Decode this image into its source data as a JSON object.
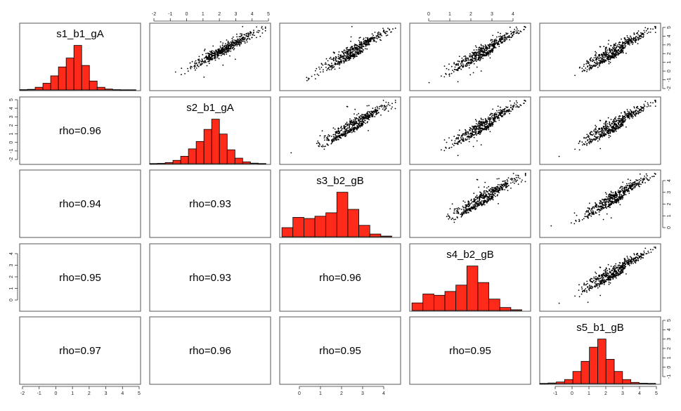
{
  "colors": {
    "bar_fill": "#ff2a1a",
    "bar_stroke": "#000000",
    "point": "#000000",
    "frame": "#555555"
  },
  "chart_data": {
    "type": "scatter",
    "layout": "pairs-matrix",
    "variables": [
      "s1_b1_gA",
      "s2_b1_gA",
      "s3_b2_gB",
      "s4_b2_gB",
      "s5_b1_gB"
    ],
    "diagonal": {
      "type": "bar",
      "histograms": [
        {
          "variable": "s1_b1_gA",
          "bins": [
            -2.5,
            -2,
            -1.5,
            -1,
            -0.5,
            0,
            0.5,
            1,
            1.5,
            2,
            2.5,
            3,
            3.5,
            4,
            4.5,
            5
          ],
          "counts": [
            2,
            4,
            18,
            45,
            95,
            155,
            215,
            300,
            165,
            60,
            18,
            6,
            2,
            1,
            1
          ],
          "range": [
            -2.5,
            5.3
          ],
          "ticks": [
            -2,
            -1,
            0,
            1,
            2,
            3,
            4,
            5
          ]
        },
        {
          "variable": "s2_b1_gA",
          "bins": [
            -2.5,
            -2,
            -1.5,
            -1,
            -0.5,
            0,
            0.5,
            1,
            1.5,
            2,
            2.5,
            3,
            3.5,
            4,
            4.5,
            5
          ],
          "counts": [
            1,
            2,
            6,
            18,
            40,
            80,
            120,
            185,
            240,
            160,
            75,
            30,
            10,
            3,
            1
          ],
          "range": [
            -2.5,
            5.3
          ],
          "ticks": [
            -2,
            -1,
            0,
            1,
            2,
            3,
            4,
            5
          ]
        },
        {
          "variable": "s3_b2_gB",
          "bins": [
            -0.5,
            0,
            0.5,
            1,
            1.5,
            2,
            2.5,
            3,
            3.5,
            4,
            4.5
          ],
          "counts": [
            40,
            85,
            80,
            90,
            105,
            195,
            120,
            50,
            12,
            3
          ],
          "range": [
            -0.6,
            4.9
          ],
          "ticks": [
            0,
            1,
            2,
            3,
            4
          ]
        },
        {
          "variable": "s4_b2_gB",
          "bins": [
            -0.5,
            0,
            0.5,
            1,
            1.5,
            2,
            2.5,
            3,
            3.5,
            4,
            4.5
          ],
          "counts": [
            30,
            65,
            60,
            75,
            100,
            175,
            110,
            45,
            12,
            3
          ],
          "range": [
            -0.6,
            4.9
          ],
          "ticks": [
            0,
            1,
            2,
            3,
            4
          ]
        },
        {
          "variable": "s5_b1_gB",
          "bins": [
            -2,
            -1.5,
            -1,
            -0.5,
            0,
            0.5,
            1,
            1.5,
            2,
            2.5,
            3,
            3.5,
            4,
            4.5,
            5
          ],
          "counts": [
            1,
            3,
            8,
            20,
            60,
            110,
            180,
            220,
            120,
            60,
            20,
            6,
            2,
            1
          ],
          "range": [
            -2,
            5.3
          ],
          "ticks": [
            -1,
            0,
            1,
            2,
            3,
            4,
            5
          ]
        }
      ]
    },
    "lower": [
      {
        "row": 2,
        "col": 1,
        "label": "rho=0.96",
        "rho": 0.96
      },
      {
        "row": 3,
        "col": 1,
        "label": "rho=0.94",
        "rho": 0.94
      },
      {
        "row": 3,
        "col": 2,
        "label": "rho=0.93",
        "rho": 0.93
      },
      {
        "row": 4,
        "col": 1,
        "label": "rho=0.95",
        "rho": 0.95
      },
      {
        "row": 4,
        "col": 2,
        "label": "rho=0.93",
        "rho": 0.93
      },
      {
        "row": 4,
        "col": 3,
        "label": "rho=0.96",
        "rho": 0.96
      },
      {
        "row": 5,
        "col": 1,
        "label": "rho=0.97",
        "rho": 0.97
      },
      {
        "row": 5,
        "col": 2,
        "label": "rho=0.96",
        "rho": 0.96
      },
      {
        "row": 5,
        "col": 3,
        "label": "rho=0.95",
        "rho": 0.95
      },
      {
        "row": 5,
        "col": 4,
        "label": "rho=0.95",
        "rho": 0.95
      }
    ],
    "upper_scatter": [
      {
        "row": 1,
        "col": 2
      },
      {
        "row": 1,
        "col": 3
      },
      {
        "row": 1,
        "col": 4
      },
      {
        "row": 1,
        "col": 5
      },
      {
        "row": 2,
        "col": 3
      },
      {
        "row": 2,
        "col": 4
      },
      {
        "row": 2,
        "col": 5
      },
      {
        "row": 3,
        "col": 4
      },
      {
        "row": 3,
        "col": 5
      },
      {
        "row": 4,
        "col": 5
      }
    ],
    "axes": {
      "top": [
        {
          "col": 2,
          "ticks": [
            "-2",
            "-1",
            "0",
            "1",
            "2",
            "3",
            "4",
            "5"
          ]
        },
        {
          "col": 4,
          "ticks": [
            "0",
            "1",
            "2",
            "3",
            "4"
          ]
        }
      ],
      "bottom": [
        {
          "col": 1,
          "ticks": [
            "-2",
            "-1",
            "0",
            "1",
            "2",
            "3",
            "4",
            "5"
          ]
        },
        {
          "col": 3,
          "ticks": [
            "0",
            "1",
            "2",
            "3",
            "4"
          ]
        },
        {
          "col": 5,
          "ticks": [
            "-1",
            "0",
            "1",
            "2",
            "3",
            "4",
            "5"
          ]
        }
      ],
      "left": [
        {
          "row": 2,
          "ticks": [
            "-2",
            "-1",
            "0",
            "1",
            "2",
            "3",
            "4",
            "5"
          ]
        },
        {
          "row": 4,
          "ticks": [
            "0",
            "1",
            "2",
            "3",
            "4"
          ]
        }
      ],
      "right": [
        {
          "row": 1,
          "ticks": [
            "-2",
            "-1",
            "0",
            "1",
            "2",
            "3",
            "4",
            "5"
          ]
        },
        {
          "row": 3,
          "ticks": [
            "0",
            "1",
            "2",
            "3",
            "4"
          ]
        },
        {
          "row": 5,
          "ticks": [
            "-1",
            "0",
            "1",
            "2",
            "3",
            "4",
            "5"
          ]
        }
      ]
    }
  }
}
